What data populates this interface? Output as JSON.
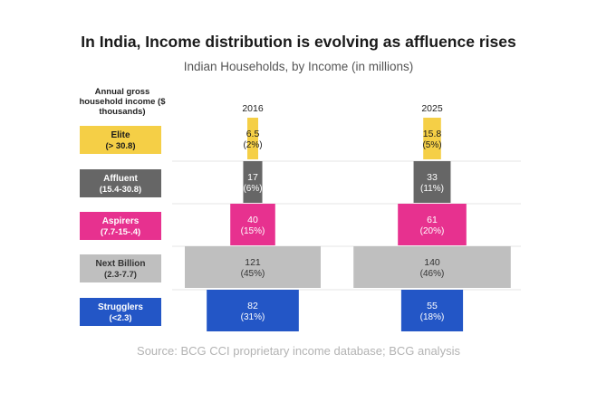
{
  "title": "In India, Income distribution is evolving as affluence rises",
  "subtitle": "Indian Households, by Income (in millions)",
  "y_axis_label": "Annual gross household income ($ thousands)",
  "source": "Source: BCG CCI proprietary income database; BCG analysis",
  "chart_data": {
    "type": "bar",
    "orientation": "horizontal",
    "years": [
      "2016",
      "2025"
    ],
    "categories": [
      {
        "name": "Elite",
        "range": "(> 30.8)",
        "color": "#f5cf46"
      },
      {
        "name": "Affluent",
        "range": "(15.4-30.8)",
        "color": "#666666"
      },
      {
        "name": "Aspirers",
        "range": "(7.7-15-.4)",
        "color": "#e7318f"
      },
      {
        "name": "Next Billion",
        "range": "(2.3-7.7)",
        "color": "#bfbfbf"
      },
      {
        "name": "Strugglers",
        "range": "(<2.3)",
        "color": "#2356c6"
      }
    ],
    "series": [
      {
        "name": "2016",
        "values": [
          6.5,
          17,
          40,
          121,
          82
        ],
        "shares": [
          "(2%)",
          "(6%)",
          "(15%)",
          "(45%)",
          "(31%)"
        ]
      },
      {
        "name": "2025",
        "values": [
          15.8,
          33,
          61,
          140,
          55
        ],
        "shares": [
          "(5%)",
          "(11%)",
          "(20%)",
          "(46%)",
          "(18%)"
        ]
      }
    ],
    "value_labels": [
      [
        "6.5",
        "17",
        "40",
        "121",
        "82"
      ],
      [
        "15.8",
        "33",
        "61",
        "140",
        "55"
      ]
    ],
    "label_text_colors": [
      "#1a1a1a",
      "#ffffff",
      "#ffffff",
      "#333333",
      "#ffffff"
    ],
    "grid": true,
    "legend": "none"
  }
}
